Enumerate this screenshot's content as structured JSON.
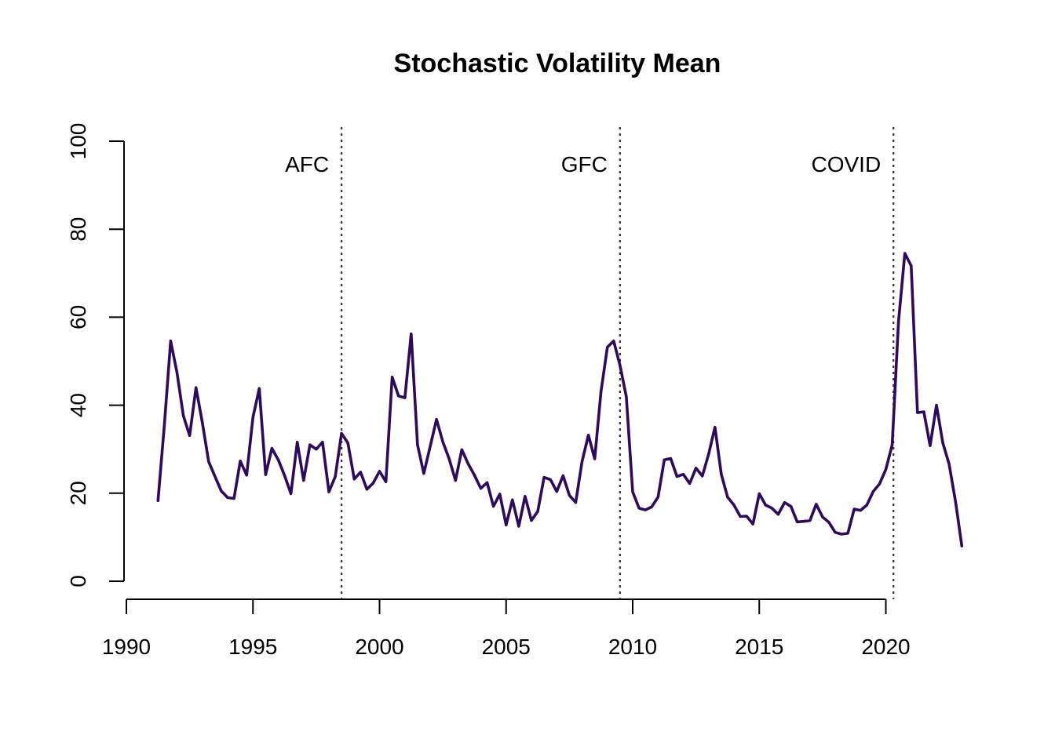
{
  "chart_data": {
    "type": "line",
    "title": "Stochastic Volatility Mean",
    "xlabel": "",
    "ylabel": "",
    "xlim": [
      1990,
      2023
    ],
    "ylim": [
      0,
      100
    ],
    "x_ticks": [
      "1990",
      "1995",
      "2000",
      "2005",
      "2010",
      "2015",
      "2020"
    ],
    "y_ticks": [
      "0",
      "20",
      "40",
      "60",
      "80",
      "100"
    ],
    "grid": false,
    "line_color": "#2E0A5E",
    "series": [
      {
        "x": [
          1991.25,
          1991.5,
          1991.75,
          1992.0,
          1992.25,
          1992.5,
          1992.75,
          1993.0,
          1993.25,
          1993.5,
          1993.75,
          1994.0,
          1994.25,
          1994.5,
          1994.75,
          1995.0,
          1995.25,
          1995.5,
          1995.75,
          1996.0,
          1996.25,
          1996.5,
          1996.75,
          1997.0,
          1997.25,
          1997.5,
          1997.75,
          1998.0,
          1998.25,
          1998.5,
          1998.75,
          1999.0,
          1999.25,
          1999.5,
          1999.75,
          2000.0,
          2000.25,
          2000.5,
          2000.75,
          2001.0,
          2001.25,
          2001.5,
          2001.75,
          2002.0,
          2002.25,
          2002.5,
          2002.75,
          2003.0,
          2003.25,
          2003.5,
          2003.75,
          2004.0,
          2004.25,
          2004.5,
          2004.75,
          2005.0,
          2005.25,
          2005.5,
          2005.75,
          2006.0,
          2006.25,
          2006.5,
          2006.75,
          2007.0,
          2007.25,
          2007.5,
          2007.75,
          2008.0,
          2008.25,
          2008.5,
          2008.75,
          2009.0,
          2009.25,
          2009.5,
          2009.75,
          2010.0,
          2010.25,
          2010.5,
          2010.75,
          2011.0,
          2011.25,
          2011.5,
          2011.75,
          2012.0,
          2012.25,
          2012.5,
          2012.75,
          2013.0,
          2013.25,
          2013.5,
          2013.75,
          2014.0,
          2014.25,
          2014.5,
          2014.75,
          2015.0,
          2015.25,
          2015.5,
          2015.75,
          2016.0,
          2016.25,
          2016.5,
          2016.75,
          2017.0,
          2017.25,
          2017.5,
          2017.75,
          2018.0,
          2018.25,
          2018.5,
          2018.75,
          2019.0,
          2019.25,
          2019.5,
          2019.75,
          2020.0,
          2020.25,
          2020.5,
          2020.75,
          2021.0,
          2021.25,
          2021.5,
          2021.75,
          2022.0,
          2022.25,
          2022.5,
          2022.75,
          2023.0
        ],
        "values": [
          18.3,
          35.5,
          54.6,
          47.4,
          37.6,
          33.1,
          44.0,
          36.0,
          27.2,
          23.8,
          20.5,
          19.0,
          18.8,
          27.3,
          24.1,
          37.3,
          43.8,
          24.2,
          30.2,
          27.6,
          24.0,
          19.9,
          31.6,
          22.9,
          31.0,
          30.0,
          31.6,
          20.3,
          23.8,
          33.6,
          31.4,
          23.2,
          24.8,
          20.9,
          22.3,
          25.0,
          22.6,
          46.4,
          42.1,
          41.7,
          56.2,
          31.0,
          24.5,
          30.6,
          36.8,
          31.7,
          27.8,
          22.9,
          29.9,
          26.7,
          24.1,
          21.1,
          22.4,
          17.0,
          19.8,
          12.8,
          18.5,
          12.5,
          19.3,
          13.8,
          15.9,
          23.6,
          23.1,
          20.4,
          24.0,
          19.5,
          17.9,
          27.2,
          33.2,
          27.8,
          43.2,
          53.2,
          54.6,
          49.0,
          41.9,
          20.3,
          16.6,
          16.2,
          16.9,
          19.1,
          27.6,
          27.9,
          23.8,
          24.3,
          22.2,
          25.7,
          23.9,
          28.9,
          35.0,
          24.3,
          19.1,
          17.3,
          14.7,
          14.8,
          13.0,
          19.9,
          17.3,
          16.6,
          15.2,
          17.9,
          17.0,
          13.5,
          13.6,
          13.8,
          17.5,
          14.6,
          13.4,
          11.1,
          10.7,
          10.9,
          16.4,
          16.1,
          17.3,
          20.4,
          22.1,
          25.4,
          31.0,
          58.9,
          74.5,
          71.7,
          38.3,
          38.5,
          30.8,
          40.0,
          31.4,
          26.6,
          18.2,
          8.0
        ]
      }
    ],
    "annotations": [
      {
        "x": 1998.5,
        "label": "AFC",
        "style": "dotted vertical line"
      },
      {
        "x": 2009.5,
        "label": "GFC",
        "style": "dotted vertical line"
      },
      {
        "x": 2020.3,
        "label": "COVID",
        "style": "dotted vertical line"
      }
    ]
  }
}
